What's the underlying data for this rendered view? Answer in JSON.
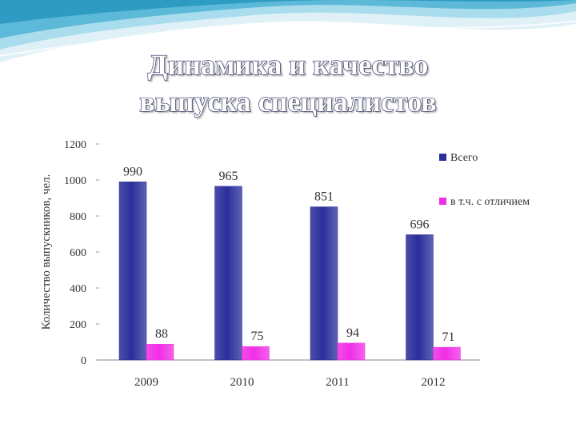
{
  "title": {
    "line1": "Динамика и качество",
    "line2": "выпуска специалистов"
  },
  "colors": {
    "background": "#ffffff",
    "wave_light": "#cfeaf3",
    "wave_mid": "#8fd0e4",
    "wave_dark": "#3aa6c9",
    "series_total": "#2b2e9a",
    "series_honors": "#f02ee6",
    "title_stroke": "#1d2160"
  },
  "chart_data": {
    "type": "bar",
    "categories": [
      "2009",
      "2010",
      "2011",
      "2012"
    ],
    "series": [
      {
        "name": "Всего",
        "values": [
          990,
          965,
          851,
          696
        ],
        "color": "#2b2e9a"
      },
      {
        "name": "в т.ч. с отличием",
        "values": [
          88,
          75,
          94,
          71
        ],
        "color": "#f02ee6"
      }
    ],
    "ylabel": "Количество выпускников, чел.",
    "xlabel": "",
    "ylim": [
      0,
      1200
    ],
    "yticks": [
      "0",
      "200",
      "400",
      "600",
      "800",
      "1000",
      "1200"
    ],
    "grid": false,
    "legend": "right"
  }
}
